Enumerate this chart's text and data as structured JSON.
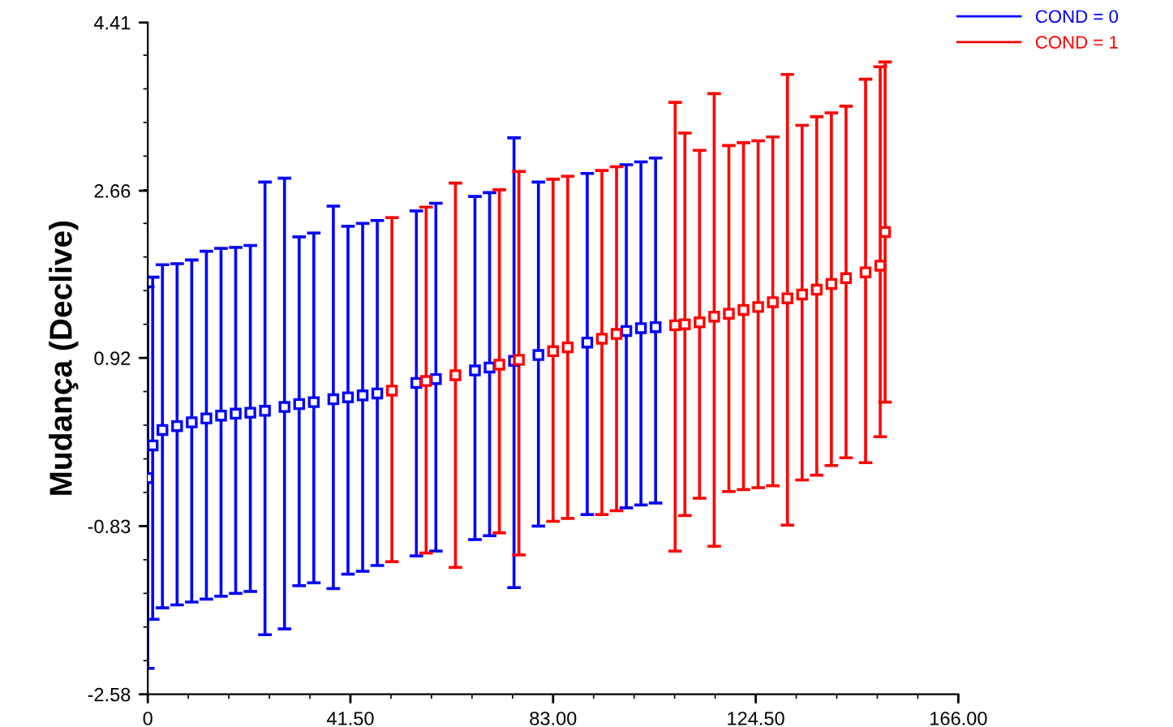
{
  "chart_data": {
    "type": "scatter",
    "ylabel": "Mudança (Declive)",
    "marker": "square",
    "legend": "top right",
    "grid": false,
    "xlim": [
      0,
      166
    ],
    "ylim": [
      -2.58,
      4.41
    ],
    "xticks": [
      0,
      {
        "value": 41.5,
        "label": "41.50"
      },
      {
        "value": 83,
        "label": "83.00"
      },
      {
        "value": 124.5,
        "label": "124.50"
      },
      {
        "value": 166,
        "label": "166.00"
      }
    ],
    "yticks": [
      -2.58,
      -0.83,
      0.92,
      2.66,
      4.41
    ],
    "series": [
      {
        "name": "COND = 0",
        "color": "#0000ff",
        "x": [
          0,
          1,
          3,
          6,
          9,
          12,
          15,
          18,
          21,
          24,
          28,
          31,
          34,
          38,
          41,
          44,
          47,
          55,
          59,
          67,
          70,
          75,
          80,
          90,
          98,
          101,
          104
        ],
        "values": [
          -0.33,
          0.01,
          0.17,
          0.21,
          0.25,
          0.29,
          0.32,
          0.34,
          0.35,
          0.37,
          0.41,
          0.44,
          0.46,
          0.49,
          0.51,
          0.53,
          0.55,
          0.66,
          0.7,
          0.79,
          0.82,
          0.89,
          0.95,
          1.08,
          1.2,
          1.23,
          1.24
        ],
        "errors": [
          [
            -2.31,
            1.66
          ],
          [
            -1.8,
            1.76
          ],
          [
            -1.68,
            1.89
          ],
          [
            -1.65,
            1.9
          ],
          [
            -1.62,
            1.94
          ],
          [
            -1.59,
            2.03
          ],
          [
            -1.56,
            2.06
          ],
          [
            -1.53,
            2.07
          ],
          [
            -1.51,
            2.09
          ],
          [
            -1.96,
            2.75
          ],
          [
            -1.9,
            2.79
          ],
          [
            -1.45,
            2.18
          ],
          [
            -1.42,
            2.22
          ],
          [
            -1.48,
            2.5
          ],
          [
            -1.33,
            2.29
          ],
          [
            -1.3,
            2.32
          ],
          [
            -1.24,
            2.35
          ],
          [
            -1.14,
            2.45
          ],
          [
            -1.09,
            2.53
          ],
          [
            -0.97,
            2.6
          ],
          [
            -0.93,
            2.64
          ],
          [
            -1.47,
            3.21
          ],
          [
            -0.83,
            2.75
          ],
          [
            -0.71,
            2.84
          ],
          [
            -0.64,
            2.93
          ],
          [
            -0.61,
            2.96
          ],
          [
            -0.59,
            3.0
          ]
        ]
      },
      {
        "name": "COND = 1",
        "color": "#ff0000",
        "x": [
          50,
          57,
          63,
          72,
          76,
          83,
          86,
          93,
          96,
          108,
          110,
          113,
          116,
          119,
          122,
          125,
          128,
          131,
          134,
          137,
          140,
          143,
          147,
          150,
          151
        ],
        "values": [
          0.58,
          0.68,
          0.74,
          0.85,
          0.9,
          0.99,
          1.03,
          1.12,
          1.17,
          1.26,
          1.27,
          1.29,
          1.35,
          1.38,
          1.42,
          1.45,
          1.5,
          1.54,
          1.58,
          1.63,
          1.69,
          1.75,
          1.81,
          1.88,
          2.23
        ],
        "errors": [
          [
            -1.2,
            2.38
          ],
          [
            -1.11,
            2.49
          ],
          [
            -1.26,
            2.74
          ],
          [
            -0.9,
            2.67
          ],
          [
            -1.13,
            2.86
          ],
          [
            -0.78,
            2.78
          ],
          [
            -0.75,
            2.81
          ],
          [
            -0.71,
            2.87
          ],
          [
            -0.67,
            2.91
          ],
          [
            -1.09,
            3.58
          ],
          [
            -0.72,
            3.26
          ],
          [
            -0.54,
            3.08
          ],
          [
            -1.04,
            3.67
          ],
          [
            -0.47,
            3.13
          ],
          [
            -0.45,
            3.16
          ],
          [
            -0.43,
            3.18
          ],
          [
            -0.41,
            3.22
          ],
          [
            -0.82,
            3.87
          ],
          [
            -0.35,
            3.34
          ],
          [
            -0.3,
            3.43
          ],
          [
            -0.2,
            3.47
          ],
          [
            -0.12,
            3.54
          ],
          [
            -0.17,
            3.82
          ],
          [
            0.1,
            3.95
          ],
          [
            0.46,
            4.0
          ]
        ]
      }
    ]
  }
}
